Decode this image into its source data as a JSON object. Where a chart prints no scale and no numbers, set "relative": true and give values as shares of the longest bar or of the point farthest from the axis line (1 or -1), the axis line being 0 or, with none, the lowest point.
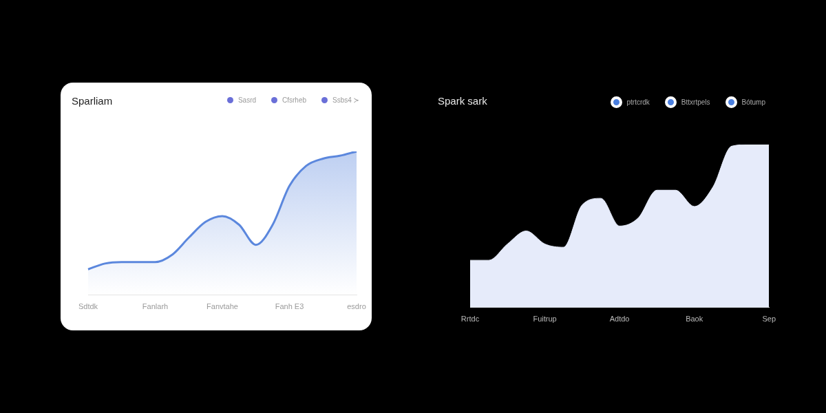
{
  "chart_data": [
    {
      "type": "area",
      "title": "Sparliam",
      "relative": true,
      "categories": [
        "Sdtdk",
        null,
        null,
        null,
        "Fanlarh",
        null,
        null,
        null,
        "Fanvtahe",
        null,
        null,
        null,
        "Fanh E3",
        null,
        null,
        null,
        "esdro"
      ],
      "series": [
        {
          "color": "#5b87dd",
          "values": [
            0.18,
            0.22,
            0.23,
            0.23,
            0.23,
            0.28,
            0.4,
            0.51,
            0.55,
            0.49,
            0.35,
            0.49,
            0.76,
            0.9,
            0.95,
            0.97,
            1
          ]
        }
      ],
      "annotations": [
        "Sasrd",
        "Cfsrheb",
        "Ssbs4 ≻"
      ]
    },
    {
      "type": "area",
      "title": "Spark sark",
      "relative": true,
      "categories": [
        "Rrtdc",
        null,
        null,
        null,
        "Fuitrup",
        null,
        null,
        null,
        "Adtdo",
        null,
        null,
        null,
        "Baok",
        null,
        null,
        null,
        "Sep"
      ],
      "series": [
        {
          "color": "#e6ebfa",
          "values": [
            0.29,
            0.29,
            0.39,
            0.47,
            0.39,
            0.37,
            0.63,
            0.67,
            0.5,
            0.55,
            0.72,
            0.72,
            0.62,
            0.74,
            0.99,
            1,
            1
          ]
        }
      ],
      "annotations": [
        "ptrtcrdk",
        "Bttxrtpels",
        "Bótump"
      ]
    }
  ]
}
